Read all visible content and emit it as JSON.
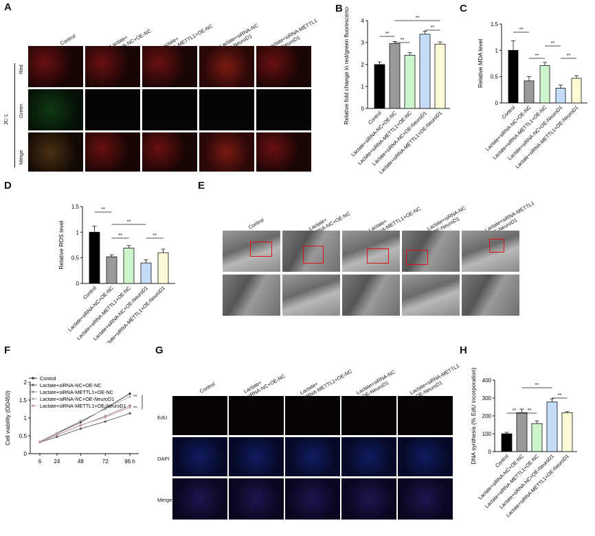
{
  "panels": {
    "A": "A",
    "B": "B",
    "C": "C",
    "D": "D",
    "E": "E",
    "F": "F",
    "G": "G",
    "H": "H"
  },
  "groups": {
    "g1": "Control",
    "g2a": "Lactate+",
    "g2b": "siRNA-NC+OE-NC",
    "g3a": "Lactate+",
    "g3b": "siRNA-METTL1+OE-NC",
    "g4a": "Lactate+siRNA-NC",
    "g4b": "+OE-NeuroD1",
    "g5a": "Lactate+siRNA-METTL1",
    "g5b": "+OE-NeuroD1"
  },
  "xticks": [
    "Control",
    "Lactate+siRNA-NC+OE-NC",
    "Lactate+siRNA-METTL1+OE-NC",
    "Lactate+siRNA-NC+OE-NeuroD1",
    "Lactate+siRNA-METTL1+OE-NeuroD1"
  ],
  "panelA": {
    "jc1": "JC-1",
    "rows": [
      "Red",
      "Green",
      "Merge"
    ]
  },
  "panelG": {
    "rows": [
      "EdU",
      "DAPI",
      "Merge"
    ]
  },
  "sig": "**",
  "sig_ns": "**",
  "colors": {
    "Control": "#000000",
    "Lactate+siRNA-NC+OE-NC": "#999999",
    "Lactate+siRNA-METTL1+OE-NC": "#ccf5cc",
    "Lactate+siRNA-NC+OE-NeuroD1": "#c4dcf8",
    "Lactate+siRNA-METTL1+OE-NeuroD1": "#fdfbd6"
  },
  "chart_data": [
    {
      "id": "B",
      "type": "bar",
      "ylabel": "Relative fold change in red/green fluorescence",
      "ylim": [
        0,
        4
      ],
      "yticks": [
        0,
        1,
        2,
        3,
        4
      ],
      "categories": [
        "Control",
        "Lactate+siRNA-NC+OE-NC",
        "Lactate+siRNA-METTL1+OE-NC",
        "Lactate+siRNA-NC+OE-NeuroD1",
        "Lactate+siRNA-METTL1+OE-NeuroD1"
      ],
      "values": [
        2.0,
        2.95,
        2.42,
        3.38,
        2.93
      ],
      "errors": [
        0.12,
        0.1,
        0.12,
        0.14,
        0.1
      ]
    },
    {
      "id": "C",
      "type": "bar",
      "ylabel": "Relative MDA level",
      "ylim": [
        0,
        1.5
      ],
      "yticks": [
        0.0,
        0.5,
        1.0,
        1.5
      ],
      "categories": [
        "Control",
        "Lactate+siRNA-NC+OE-NC",
        "Lactate+siRNA-METTL1+OE-NC",
        "Lactate+siRNA-NC+OE-NeuroD1",
        "Lactate+siRNA-METTL1+OE-NeuroD1"
      ],
      "values": [
        1.0,
        0.42,
        0.71,
        0.28,
        0.47
      ],
      "errors": [
        0.18,
        0.08,
        0.06,
        0.06,
        0.05
      ]
    },
    {
      "id": "D",
      "type": "bar",
      "ylabel": "Relative ROS level",
      "ylim": [
        0,
        1.5
      ],
      "yticks": [
        0.0,
        0.5,
        1.0,
        1.5
      ],
      "categories": [
        "Control",
        "Lactate+siRNA-NC+OE-NC",
        "Lactate+siRNA-METTL1+OE-NC",
        "Lactate+siRNA-NC+OE-NeuroD1",
        "Lactate+siRNA-METTL1+OE-NeuroD1"
      ],
      "values": [
        1.0,
        0.52,
        0.69,
        0.4,
        0.6
      ],
      "errors": [
        0.12,
        0.04,
        0.05,
        0.06,
        0.07
      ]
    },
    {
      "id": "F",
      "type": "line",
      "ylabel": "Cell viability (OD450)",
      "ylim": [
        0,
        2.0
      ],
      "yticks": [
        0,
        0.5,
        1.0,
        1.5,
        2.0
      ],
      "x": [
        "6",
        "24",
        "48",
        "72",
        "96 h"
      ],
      "series": [
        {
          "name": "Control",
          "values": [
            0.34,
            0.57,
            0.88,
            1.27,
            1.68
          ]
        },
        {
          "name": "Lactate+siRNA-NC+OE-NC",
          "values": [
            0.32,
            0.47,
            0.7,
            0.9,
            1.13
          ]
        },
        {
          "name": "Lactate+siRNA-METTL1+OE-NC",
          "values": [
            0.33,
            0.53,
            0.79,
            1.05,
            1.35
          ]
        },
        {
          "name": "Lactate+siRNA-NC+OE-NeuroD1",
          "values": [
            0.34,
            0.58,
            0.92,
            1.25,
            1.6
          ]
        },
        {
          "name": "Lactate+siRNA-METTL1+OE-NeuroD1",
          "values": [
            0.33,
            0.52,
            0.8,
            1.02,
            1.3
          ]
        }
      ]
    },
    {
      "id": "H",
      "type": "bar",
      "ylabel": "DNA synthesis (% EdU incorporation)",
      "ylim": [
        0,
        400
      ],
      "yticks": [
        0,
        100,
        200,
        300,
        400
      ],
      "categories": [
        "Control",
        "Lactate+siRNA-NC+OE-NC",
        "Lactate+siRNA-METTL1+OE-NC",
        "Lactate+siRNA-NC+OE-NeuroD1",
        "Lactate+siRNA-METTL1+OE-NeuroD1"
      ],
      "values": [
        100,
        218,
        157,
        278,
        218
      ],
      "errors": [
        8,
        20,
        15,
        18,
        6
      ]
    }
  ]
}
